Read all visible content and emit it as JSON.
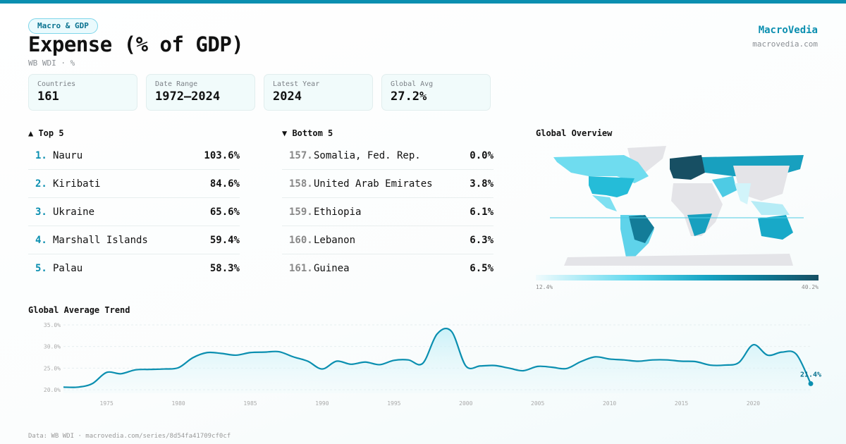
{
  "header": {
    "category": "Macro & GDP",
    "title": "Expense (% of GDP)",
    "subtitle": "WB WDI · %",
    "brand": "MacroVedia",
    "brand_url": "macrovedia.com"
  },
  "stats": [
    {
      "label": "Countries",
      "value": "161"
    },
    {
      "label": "Date Range",
      "value": "1972–2024"
    },
    {
      "label": "Latest Year",
      "value": "2024"
    },
    {
      "label": "Global Avg",
      "value": "27.2%"
    }
  ],
  "top5": {
    "heading": "▲ Top 5",
    "items": [
      {
        "rank": "1.",
        "name": "Nauru",
        "value": "103.6%"
      },
      {
        "rank": "2.",
        "name": "Kiribati",
        "value": "84.6%"
      },
      {
        "rank": "3.",
        "name": "Ukraine",
        "value": "65.6%"
      },
      {
        "rank": "4.",
        "name": "Marshall Islands",
        "value": "59.4%"
      },
      {
        "rank": "5.",
        "name": "Palau",
        "value": "58.3%"
      }
    ]
  },
  "bottom5": {
    "heading": "▼ Bottom 5",
    "items": [
      {
        "rank": "157.",
        "name": "Somalia, Fed. Rep.",
        "value": "0.0%"
      },
      {
        "rank": "158.",
        "name": "United Arab Emirates",
        "value": "3.8%"
      },
      {
        "rank": "159.",
        "name": "Ethiopia",
        "value": "6.1%"
      },
      {
        "rank": "160.",
        "name": "Lebanon",
        "value": "6.3%"
      },
      {
        "rank": "161.",
        "name": "Guinea",
        "value": "6.5%"
      }
    ]
  },
  "map": {
    "title": "Global Overview",
    "legend_min": "12.4%",
    "legend_max": "40.2%",
    "colors": {
      "low": "#f0fbfd",
      "mid": "#18a5c4",
      "high": "#174f63",
      "nodata": "#e4e4e8"
    }
  },
  "chart_data": {
    "type": "area",
    "title": "Global Average Trend",
    "x": [
      1972,
      1973,
      1974,
      1975,
      1976,
      1977,
      1978,
      1979,
      1980,
      1981,
      1982,
      1983,
      1984,
      1985,
      1986,
      1987,
      1988,
      1989,
      1990,
      1991,
      1992,
      1993,
      1994,
      1995,
      1996,
      1997,
      1998,
      1999,
      2000,
      2001,
      2002,
      2003,
      2004,
      2005,
      2006,
      2007,
      2008,
      2009,
      2010,
      2011,
      2012,
      2013,
      2014,
      2015,
      2016,
      2017,
      2018,
      2019,
      2020,
      2021,
      2022,
      2023,
      2024
    ],
    "values": [
      20.6,
      20.6,
      21.4,
      24.0,
      23.7,
      24.6,
      24.7,
      24.8,
      25.1,
      27.4,
      28.6,
      28.4,
      28.0,
      28.6,
      28.7,
      28.8,
      27.6,
      26.6,
      24.8,
      26.6,
      25.9,
      26.4,
      25.8,
      26.8,
      26.9,
      26.1,
      32.9,
      33.5,
      25.5,
      25.5,
      25.6,
      25.0,
      24.4,
      25.4,
      25.2,
      24.9,
      26.5,
      27.6,
      27.1,
      26.9,
      26.6,
      26.9,
      26.9,
      26.6,
      26.5,
      25.7,
      25.7,
      26.3,
      30.4,
      28.0,
      28.7,
      28.2,
      21.4
    ],
    "ylim": [
      20,
      35
    ],
    "yticks": [
      "35.0%",
      "30.0%",
      "25.0%",
      "20.0%"
    ],
    "xticks": [
      "1975",
      "1980",
      "1985",
      "1990",
      "1995",
      "2000",
      "2005",
      "2010",
      "2015",
      "2020"
    ],
    "last_label": "21.4%",
    "grid": true,
    "color": "#0b8fb0"
  },
  "footer": "Data: WB WDI · macrovedia.com/series/8d54fa41709cf0cf"
}
